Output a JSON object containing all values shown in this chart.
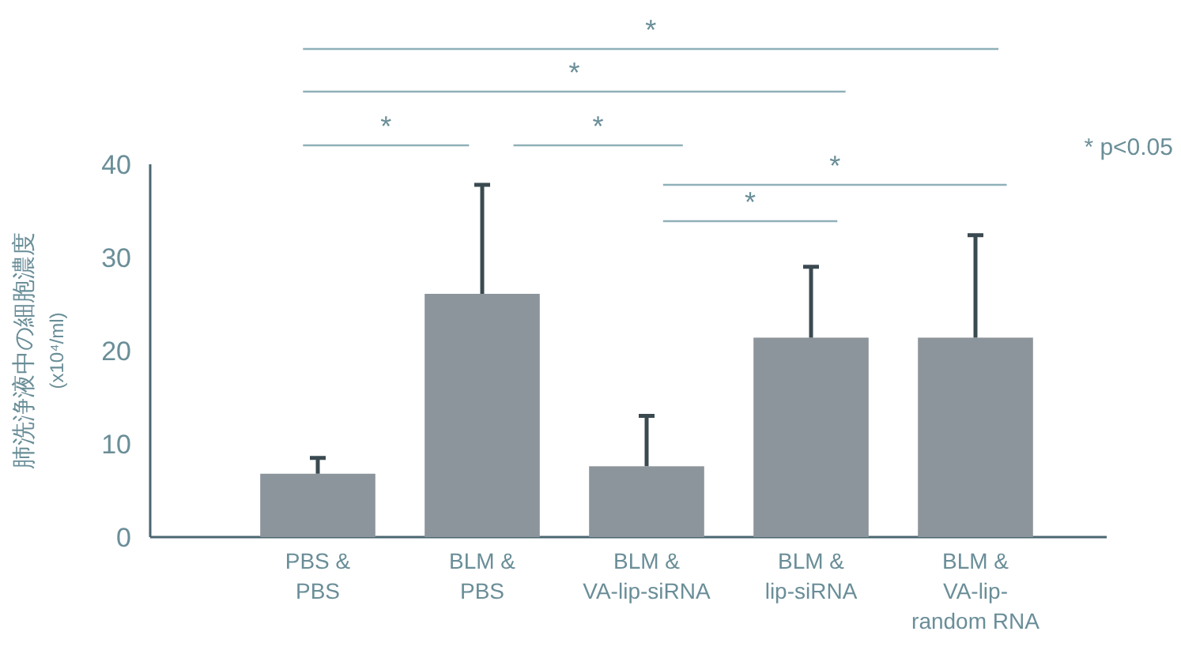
{
  "chart_data": {
    "type": "bar",
    "ylabel": "肺洗浄液中の細胞濃度\n(x10⁴/ml)",
    "categories": [
      "PBS &\nPBS",
      "BLM &\nPBS",
      "BLM &\nVA-lip-siRNA",
      "BLM &\nlip-siRNA",
      "BLM &\nVA-lip-\nrandom RNA"
    ],
    "values": [
      6.8,
      26.1,
      7.6,
      21.4,
      21.4
    ],
    "errors": [
      [
        6.8,
        8.5
      ],
      [
        26.1,
        37.8
      ],
      [
        7.6,
        13.0
      ],
      [
        21.4,
        29.0
      ],
      [
        21.4,
        32.4
      ]
    ],
    "color": "#8c959b",
    "ylim": [
      0,
      40
    ],
    "yticks": [
      0,
      10,
      20,
      30,
      40
    ],
    "grid": false,
    "annotations": [
      "*",
      "*",
      "*",
      "*",
      "*",
      "*",
      "* p<0.05"
    ]
  }
}
